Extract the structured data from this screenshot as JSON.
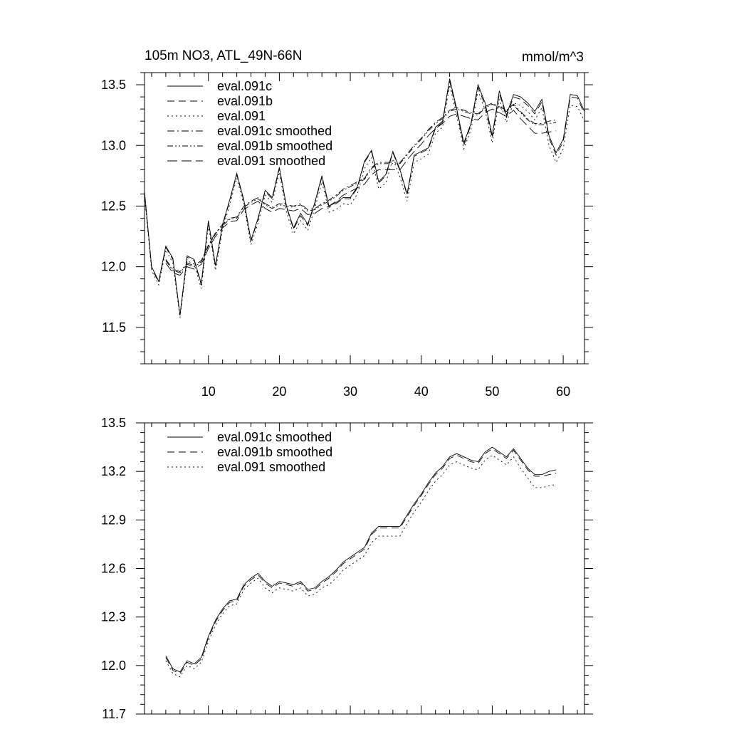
{
  "chart_data": [
    {
      "type": "line",
      "title_left": "105m NO3, ATL_49N-66N",
      "title_right": "mmol/m^3",
      "xlim": [
        1,
        63
      ],
      "ylim": [
        11.2,
        13.6
      ],
      "xticks": [
        10,
        20,
        30,
        40,
        50,
        60
      ],
      "yticks": [
        11.5,
        12.0,
        12.5,
        13.0,
        13.5
      ],
      "ytick_labels": [
        "11.5",
        "12.0",
        "12.5",
        "13.0",
        "13.5"
      ],
      "legend_position": "top-left",
      "series": [
        {
          "name": "eval.091c",
          "style": "solid",
          "x_start": 1,
          "values": [
            12.62,
            12.0,
            11.88,
            12.17,
            12.07,
            11.6,
            12.09,
            12.06,
            11.86,
            12.38,
            12.01,
            12.35,
            12.55,
            12.77,
            12.55,
            12.22,
            12.4,
            12.63,
            12.57,
            12.82,
            12.5,
            12.32,
            12.44,
            12.35,
            12.53,
            12.75,
            12.5,
            12.53,
            12.57,
            12.57,
            12.66,
            12.87,
            12.96,
            12.7,
            12.76,
            12.95,
            12.8,
            12.6,
            12.92,
            12.95,
            12.98,
            13.15,
            13.2,
            13.55,
            13.3,
            13.02,
            13.18,
            13.5,
            13.35,
            13.08,
            13.45,
            13.25,
            13.42,
            13.4,
            13.35,
            13.28,
            13.38,
            13.08,
            12.94,
            13.05,
            13.42,
            13.41,
            13.28
          ]
        },
        {
          "name": "eval.091b",
          "style": "dashed",
          "x_start": 1,
          "values": [
            12.6,
            11.99,
            11.87,
            12.16,
            12.06,
            11.6,
            12.08,
            12.05,
            11.85,
            12.37,
            12.0,
            12.34,
            12.54,
            12.76,
            12.54,
            12.21,
            12.39,
            12.62,
            12.56,
            12.81,
            12.49,
            12.31,
            12.42,
            12.34,
            12.52,
            12.74,
            12.49,
            12.52,
            12.56,
            12.56,
            12.65,
            12.86,
            12.95,
            12.69,
            12.75,
            12.94,
            12.79,
            12.59,
            12.91,
            12.94,
            12.97,
            13.14,
            13.19,
            13.53,
            13.28,
            13.0,
            13.17,
            13.48,
            13.33,
            13.06,
            13.43,
            13.23,
            13.4,
            13.38,
            13.33,
            13.26,
            13.36,
            13.06,
            12.92,
            13.03,
            13.4,
            13.39,
            13.26
          ]
        },
        {
          "name": "eval.091",
          "style": "dotted",
          "x_start": 1,
          "values": [
            12.58,
            11.97,
            11.85,
            12.14,
            12.03,
            11.58,
            12.05,
            12.02,
            11.82,
            12.34,
            11.97,
            12.31,
            12.51,
            12.73,
            12.51,
            12.18,
            12.36,
            12.59,
            12.53,
            12.78,
            12.45,
            12.27,
            12.38,
            12.3,
            12.48,
            12.7,
            12.45,
            12.47,
            12.52,
            12.51,
            12.6,
            12.81,
            12.9,
            12.64,
            12.69,
            12.89,
            12.74,
            12.54,
            12.86,
            12.89,
            12.93,
            13.1,
            13.15,
            13.5,
            13.24,
            12.97,
            13.13,
            13.45,
            13.29,
            13.02,
            13.38,
            13.19,
            13.35,
            13.33,
            13.28,
            13.21,
            13.31,
            13.0,
            12.86,
            12.97,
            13.33,
            13.32,
            13.2
          ]
        },
        {
          "name": "eval.091c smoothed",
          "style": "dashdot",
          "x_start": 4,
          "values": [
            12.06,
            11.98,
            11.96,
            12.03,
            12.01,
            12.05,
            12.18,
            12.28,
            12.35,
            12.4,
            12.41,
            12.5,
            12.54,
            12.57,
            12.52,
            12.49,
            12.52,
            12.51,
            12.5,
            12.52,
            12.47,
            12.48,
            12.52,
            12.55,
            12.59,
            12.64,
            12.67,
            12.7,
            12.73,
            12.82,
            12.86,
            12.86,
            12.86,
            12.86,
            12.93,
            13.0,
            13.06,
            13.13,
            13.19,
            13.23,
            13.29,
            13.31,
            13.29,
            13.27,
            13.26,
            13.32,
            13.35,
            13.32,
            13.29,
            13.34,
            13.28,
            13.22,
            13.18,
            13.18,
            13.2,
            13.21
          ]
        },
        {
          "name": "eval.091b smoothed",
          "style": "dashdotdot",
          "x_start": 4,
          "values": [
            12.05,
            11.97,
            11.95,
            12.02,
            12.0,
            12.04,
            12.17,
            12.27,
            12.34,
            12.39,
            12.4,
            12.49,
            12.53,
            12.56,
            12.51,
            12.48,
            12.51,
            12.5,
            12.49,
            12.51,
            12.46,
            12.47,
            12.51,
            12.54,
            12.58,
            12.63,
            12.66,
            12.69,
            12.72,
            12.81,
            12.85,
            12.85,
            12.85,
            12.85,
            12.92,
            12.99,
            13.05,
            13.12,
            13.18,
            13.22,
            13.28,
            13.3,
            13.28,
            13.26,
            13.25,
            13.31,
            13.34,
            13.31,
            13.28,
            13.33,
            13.27,
            13.21,
            13.17,
            13.17,
            13.18,
            13.19
          ]
        },
        {
          "name": "eval.091 smoothed",
          "style": "longdash",
          "x_start": 4,
          "values": [
            12.03,
            11.95,
            11.93,
            12.0,
            11.98,
            12.02,
            12.15,
            12.25,
            12.32,
            12.37,
            12.38,
            12.47,
            12.51,
            12.54,
            12.48,
            12.45,
            12.48,
            12.47,
            12.46,
            12.48,
            12.43,
            12.44,
            12.48,
            12.5,
            12.54,
            12.59,
            12.62,
            12.65,
            12.68,
            12.76,
            12.8,
            12.8,
            12.8,
            12.8,
            12.88,
            12.95,
            13.01,
            13.08,
            13.14,
            13.18,
            13.24,
            13.26,
            13.24,
            13.22,
            13.21,
            13.27,
            13.3,
            13.27,
            13.24,
            13.29,
            13.22,
            13.16,
            13.1,
            13.1,
            13.11,
            13.12
          ]
        }
      ]
    },
    {
      "type": "line",
      "xlim": [
        1,
        63
      ],
      "ylim": [
        11.7,
        13.5
      ],
      "xticks": [
        10,
        20,
        30,
        40,
        50,
        60
      ],
      "yticks": [
        11.7,
        12.0,
        12.3,
        12.6,
        12.9,
        13.2,
        13.5
      ],
      "ytick_labels": [
        "11.7",
        "12.0",
        "12.3",
        "12.6",
        "12.9",
        "13.2",
        "13.5"
      ],
      "legend_position": "top-left",
      "series": [
        {
          "name": "eval.091c smoothed",
          "style": "solid",
          "x_start": 4,
          "values": [
            12.06,
            11.98,
            11.96,
            12.03,
            12.01,
            12.05,
            12.18,
            12.28,
            12.35,
            12.4,
            12.41,
            12.5,
            12.54,
            12.57,
            12.52,
            12.49,
            12.52,
            12.51,
            12.5,
            12.52,
            12.47,
            12.48,
            12.52,
            12.55,
            12.59,
            12.64,
            12.67,
            12.7,
            12.73,
            12.82,
            12.86,
            12.86,
            12.86,
            12.86,
            12.93,
            13.0,
            13.06,
            13.13,
            13.19,
            13.23,
            13.29,
            13.31,
            13.29,
            13.27,
            13.26,
            13.32,
            13.35,
            13.32,
            13.29,
            13.34,
            13.28,
            13.22,
            13.18,
            13.18,
            13.2,
            13.21
          ]
        },
        {
          "name": "eval.091b smoothed",
          "style": "dashed",
          "x_start": 4,
          "values": [
            12.05,
            11.97,
            11.95,
            12.02,
            12.0,
            12.04,
            12.17,
            12.27,
            12.34,
            12.39,
            12.4,
            12.49,
            12.53,
            12.56,
            12.51,
            12.48,
            12.51,
            12.5,
            12.49,
            12.51,
            12.46,
            12.47,
            12.51,
            12.54,
            12.58,
            12.63,
            12.66,
            12.69,
            12.72,
            12.81,
            12.85,
            12.85,
            12.85,
            12.85,
            12.92,
            12.99,
            13.05,
            13.12,
            13.18,
            13.22,
            13.28,
            13.3,
            13.28,
            13.26,
            13.25,
            13.31,
            13.34,
            13.31,
            13.28,
            13.33,
            13.27,
            13.21,
            13.17,
            13.17,
            13.18,
            13.19
          ]
        },
        {
          "name": "eval.091 smoothed",
          "style": "dotted",
          "x_start": 4,
          "values": [
            12.03,
            11.95,
            11.93,
            12.0,
            11.98,
            12.02,
            12.15,
            12.25,
            12.32,
            12.37,
            12.38,
            12.47,
            12.51,
            12.54,
            12.48,
            12.45,
            12.48,
            12.47,
            12.46,
            12.48,
            12.43,
            12.44,
            12.48,
            12.5,
            12.54,
            12.59,
            12.62,
            12.65,
            12.68,
            12.76,
            12.8,
            12.8,
            12.8,
            12.8,
            12.88,
            12.95,
            13.01,
            13.08,
            13.14,
            13.18,
            13.24,
            13.26,
            13.24,
            13.22,
            13.21,
            13.27,
            13.3,
            13.27,
            13.24,
            13.29,
            13.22,
            13.16,
            13.1,
            13.1,
            13.11,
            13.12
          ]
        }
      ]
    }
  ]
}
